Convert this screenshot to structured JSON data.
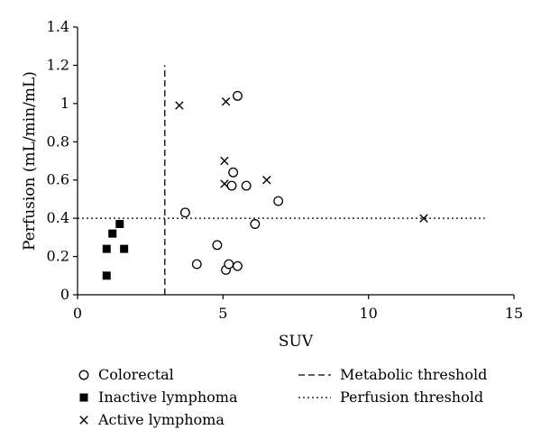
{
  "chart_data": {
    "type": "scatter",
    "xlabel": "SUV",
    "ylabel": "Perfusion (mL/min/mL)",
    "xlim": [
      0,
      15
    ],
    "ylim": [
      0,
      1.4
    ],
    "x_ticks": [
      "0",
      "5",
      "10",
      "15"
    ],
    "y_ticks": [
      "0",
      "0.2",
      "0.4",
      "0.6",
      "0.8",
      "1",
      "1.2",
      "1.4"
    ],
    "grid": false,
    "legend_position": "bottom",
    "series": [
      {
        "name": "Colorectal",
        "marker": "open-circle",
        "points": [
          {
            "x": 3.7,
            "y": 0.43
          },
          {
            "x": 4.1,
            "y": 0.16
          },
          {
            "x": 4.8,
            "y": 0.26
          },
          {
            "x": 5.1,
            "y": 0.13
          },
          {
            "x": 5.2,
            "y": 0.16
          },
          {
            "x": 5.5,
            "y": 0.15
          },
          {
            "x": 5.3,
            "y": 0.57
          },
          {
            "x": 5.35,
            "y": 0.64
          },
          {
            "x": 5.8,
            "y": 0.57
          },
          {
            "x": 5.5,
            "y": 1.04
          },
          {
            "x": 6.1,
            "y": 0.37
          },
          {
            "x": 6.9,
            "y": 0.49
          }
        ]
      },
      {
        "name": "Inactive lymphoma",
        "marker": "filled-square",
        "points": [
          {
            "x": 1.0,
            "y": 0.1
          },
          {
            "x": 1.0,
            "y": 0.24
          },
          {
            "x": 1.2,
            "y": 0.32
          },
          {
            "x": 1.45,
            "y": 0.37
          },
          {
            "x": 1.6,
            "y": 0.24
          }
        ]
      },
      {
        "name": "Active lymphoma",
        "marker": "x",
        "points": [
          {
            "x": 3.5,
            "y": 0.99
          },
          {
            "x": 5.1,
            "y": 1.01
          },
          {
            "x": 5.05,
            "y": 0.7
          },
          {
            "x": 5.05,
            "y": 0.58
          },
          {
            "x": 6.5,
            "y": 0.6
          },
          {
            "x": 11.9,
            "y": 0.4
          }
        ]
      }
    ],
    "reference_lines": [
      {
        "name": "Metabolic threshold",
        "orientation": "vertical",
        "x": 3.0,
        "y_range": [
          0,
          1.2
        ],
        "style": "dashed"
      },
      {
        "name": "Perfusion threshold",
        "orientation": "horizontal",
        "y": 0.4,
        "x_range": [
          0,
          14
        ],
        "style": "dotted"
      }
    ],
    "legend": [
      {
        "label": "Colorectal",
        "symbol": "open-circle"
      },
      {
        "label": "Inactive lymphoma",
        "symbol": "filled-square"
      },
      {
        "label": "Active lymphoma",
        "symbol": "x"
      },
      {
        "label": "Metabolic threshold",
        "symbol": "dashed-line"
      },
      {
        "label": "Perfusion threshold",
        "symbol": "dotted-line"
      }
    ]
  }
}
